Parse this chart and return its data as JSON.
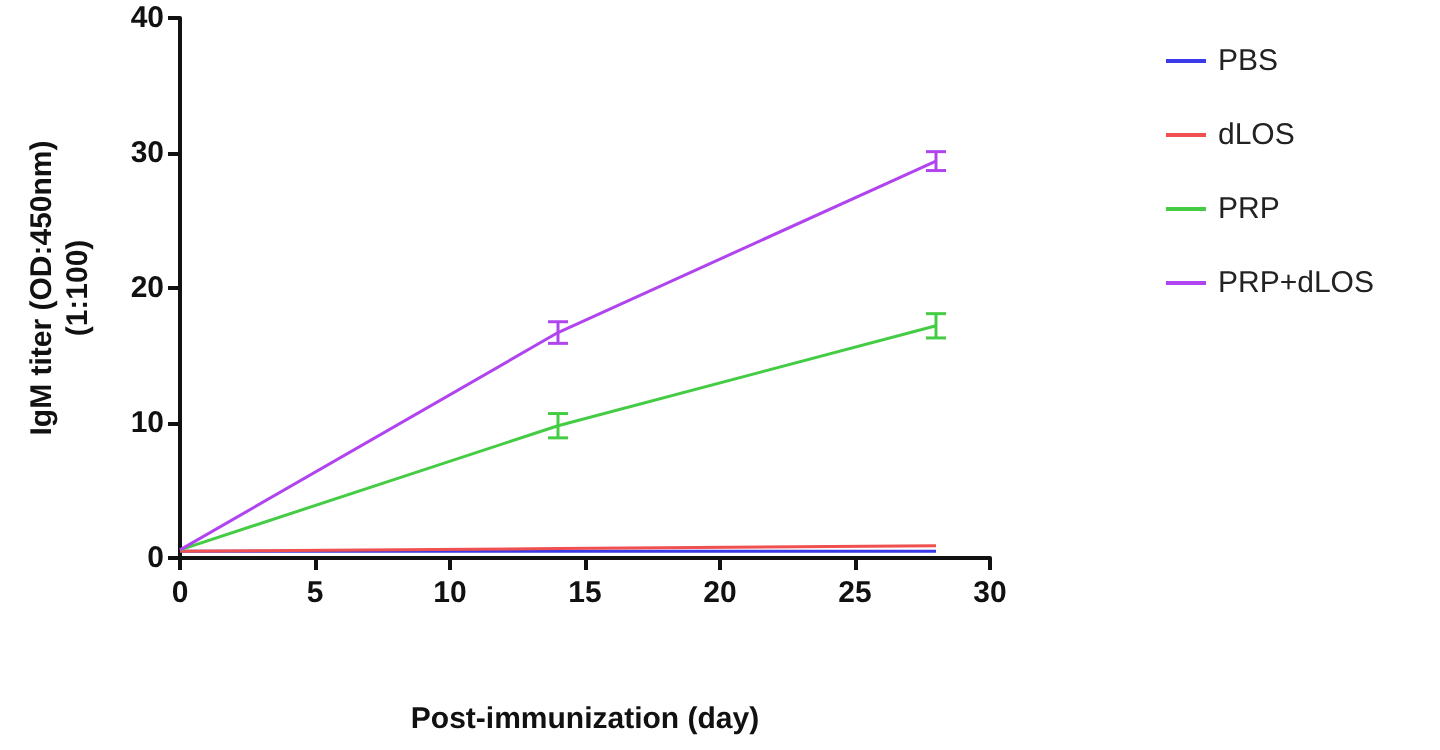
{
  "chart_data": {
    "type": "line",
    "xlabel": "Post-immunization (day)",
    "ylabel": "IgM titer (OD:450nm)\n(1:100)",
    "x": [
      0,
      14,
      28
    ],
    "xlim": [
      0,
      30
    ],
    "xticks": [
      0,
      5,
      10,
      15,
      20,
      25,
      30
    ],
    "ylim": [
      0,
      40
    ],
    "yticks": [
      0,
      10,
      20,
      30,
      40
    ],
    "grid": false,
    "legend": "right",
    "marker": "none",
    "line_style": "solid",
    "series": [
      {
        "name": "PBS",
        "color": "#3a3ae8",
        "values": [
          0.5,
          0.5,
          0.5
        ]
      },
      {
        "name": "dLOS",
        "color": "#f05050",
        "values": [
          0.5,
          0.7,
          0.9
        ]
      },
      {
        "name": "PRP",
        "color": "#44cc44",
        "values": [
          0.6,
          9.8,
          17.2
        ],
        "errors": [
          null,
          0.9,
          0.9
        ]
      },
      {
        "name": "PRP+dLOS",
        "color": "#b044ee",
        "values": [
          0.6,
          16.7,
          29.4
        ],
        "errors": [
          null,
          0.8,
          0.7
        ]
      }
    ]
  }
}
